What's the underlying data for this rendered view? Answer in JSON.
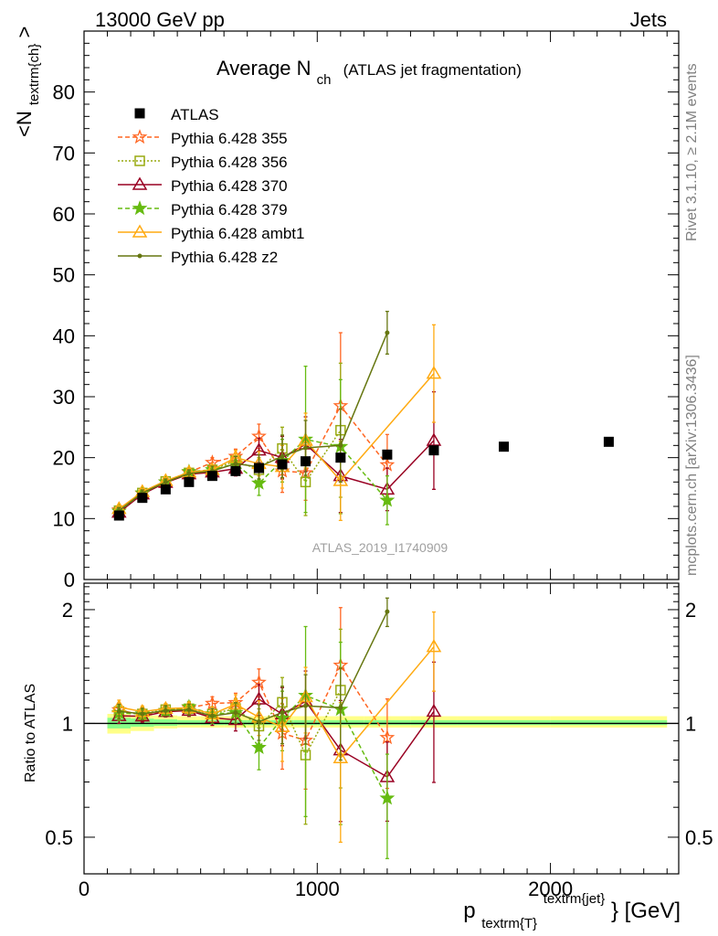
{
  "header": {
    "left": "13000 GeV pp",
    "right": "Jets"
  },
  "side_labels": {
    "top": "Rivet 3.1.10, ≥ 2.1M events",
    "bottom": "mcplots.cern.ch [arXiv:1306.3436]"
  },
  "chart_data": {
    "type": "line",
    "title": "Average N",
    "title_sub": "ch",
    "title_note": "(ATLAS jet fragmentation)",
    "watermark": "ATLAS_2019_I1740909",
    "ylabel_main": "<N",
    "ylabel_main_sub": "textrm{ch}",
    "ylabel_main_end": ">",
    "ylabel_ratio": "Ratio to ATLAS",
    "xlabel": "p",
    "xlabel_sub": "textrm{T}",
    "xlabel_sup": "textrm{jet}",
    "xlabel_unit": "} [GeV]",
    "xlim": [
      0,
      2550
    ],
    "ylim_main": [
      0,
      90
    ],
    "ylim_ratio": [
      0.4,
      2.35
    ],
    "ratio_log_scale": true,
    "x_ticks": [
      "0",
      "1000",
      "2000"
    ],
    "y_ticks_main": [
      "0",
      "10",
      "20",
      "30",
      "40",
      "50",
      "60",
      "70",
      "80"
    ],
    "y_ticks_ratio": [
      "0.5",
      "1",
      "2"
    ],
    "legend_position": "top-left",
    "data": {
      "name": "ATLAS",
      "x": [
        150,
        250,
        350,
        450,
        550,
        650,
        750,
        850,
        950,
        1100,
        1300,
        1500,
        1800,
        2250
      ],
      "y": [
        10.5,
        13.4,
        14.8,
        16.0,
        17.0,
        17.8,
        18.3,
        18.9,
        19.4,
        20.0,
        20.5,
        21.2,
        21.8,
        22.6
      ]
    },
    "band": {
      "x": [
        100,
        200,
        300,
        400,
        500,
        600,
        700,
        800,
        900,
        1000,
        1200,
        1400,
        1600,
        2000,
        2500
      ],
      "outer_lo": [
        0.94,
        0.955,
        0.97,
        0.975,
        0.975,
        0.975,
        0.975,
        0.975,
        0.975,
        0.975,
        0.975,
        0.975,
        0.975,
        0.975
      ],
      "outer_hi": [
        1.06,
        1.05,
        1.05,
        1.045,
        1.045,
        1.045,
        1.045,
        1.045,
        1.045,
        1.045,
        1.045,
        1.045,
        1.045,
        1.045
      ],
      "inner_lo": [
        0.97,
        0.98,
        0.985,
        0.99,
        0.99,
        0.99,
        0.99,
        0.99,
        0.99,
        0.99,
        0.99,
        0.99,
        0.99,
        0.99
      ],
      "inner_hi": [
        1.035,
        1.03,
        1.025,
        1.02,
        1.02,
        1.02,
        1.02,
        1.02,
        1.02,
        1.02,
        1.02,
        1.02,
        1.02,
        1.02
      ]
    },
    "series": [
      {
        "name": "Pythia 6.428 355",
        "color": "#ff6622",
        "dash": "5,3",
        "marker": "star",
        "filled": false,
        "x": [
          150,
          250,
          350,
          450,
          550,
          650,
          750,
          850,
          950,
          1100,
          1300
        ],
        "y": [
          11.4,
          14.1,
          16.0,
          17.6,
          19.2,
          20.2,
          23.5,
          17.8,
          17.5,
          28.5,
          18.8
        ],
        "err": [
          0.5,
          0.5,
          0.5,
          0.6,
          0.8,
          1.2,
          2.0,
          3.5,
          4.5,
          12.0,
          5.0
        ]
      },
      {
        "name": "Pythia 6.428 356",
        "color": "#99aa11",
        "dash": "2,2",
        "marker": "square",
        "filled": false,
        "x": [
          150,
          250,
          350,
          450,
          550,
          650,
          750,
          850,
          950,
          1100
        ],
        "y": [
          11.3,
          14.2,
          16.1,
          17.5,
          18.0,
          19.5,
          18.0,
          21.5,
          16.0,
          24.5
        ],
        "err": [
          0.5,
          0.5,
          0.5,
          0.6,
          0.8,
          1.2,
          2.0,
          3.5,
          5.5,
          11.0
        ]
      },
      {
        "name": "Pythia 6.428 370",
        "color": "#990022",
        "dash": "",
        "marker": "triangle",
        "filled": false,
        "x": [
          150,
          250,
          350,
          450,
          550,
          650,
          750,
          850,
          950,
          1100,
          1300,
          1500
        ],
        "y": [
          11.0,
          14.0,
          15.9,
          17.3,
          17.6,
          18.2,
          21.2,
          20.0,
          22.2,
          17.0,
          14.8,
          22.8
        ],
        "err": [
          0.5,
          0.5,
          0.5,
          0.6,
          0.8,
          1.2,
          2.0,
          3.5,
          4.5,
          6.0,
          3.5,
          8.0
        ]
      },
      {
        "name": "Pythia 6.428 379",
        "color": "#66bb11",
        "dash": "5,3",
        "marker": "star",
        "filled": true,
        "x": [
          150,
          250,
          350,
          450,
          550,
          650,
          750,
          850,
          950,
          1100,
          1300
        ],
        "y": [
          11.2,
          14.2,
          16.0,
          17.7,
          18.0,
          19.0,
          15.8,
          19.5,
          23.0,
          21.8,
          13.0
        ],
        "err": [
          0.5,
          0.5,
          0.5,
          0.6,
          0.8,
          1.2,
          2.0,
          3.5,
          12.0,
          11.0,
          4.0
        ]
      },
      {
        "name": "Pythia 6.428 ambt1",
        "color": "#ffaa11",
        "dash": "",
        "marker": "triangle",
        "filled": false,
        "x": [
          150,
          250,
          350,
          450,
          550,
          650,
          750,
          850,
          950,
          1100,
          1500
        ],
        "y": [
          11.6,
          14.4,
          16.2,
          17.6,
          18.0,
          20.0,
          19.0,
          18.5,
          22.8,
          16.2,
          33.8
        ],
        "err": [
          0.5,
          0.5,
          0.5,
          0.6,
          0.8,
          1.2,
          2.0,
          3.5,
          4.5,
          6.5,
          8.0
        ]
      },
      {
        "name": "Pythia 6.428 z2",
        "color": "#667711",
        "dash": "",
        "marker": "dot",
        "filled": true,
        "x": [
          150,
          250,
          350,
          450,
          550,
          650,
          750,
          850,
          950,
          1100,
          1300
        ],
        "y": [
          11.3,
          14.2,
          16.0,
          17.4,
          17.8,
          19.0,
          18.5,
          20.2,
          21.6,
          22.0,
          40.5
        ],
        "err": [
          0.5,
          0.5,
          0.5,
          0.6,
          0.8,
          1.2,
          2.0,
          3.5,
          4.5,
          6.0,
          3.5
        ]
      }
    ]
  }
}
